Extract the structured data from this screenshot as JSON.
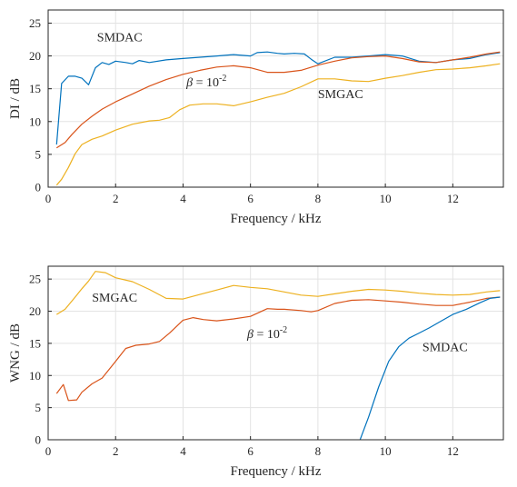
{
  "chart_data": [
    {
      "type": "line",
      "xlabel": "Frequency / kHz",
      "ylabel": "DI / dB",
      "xlim": [
        0,
        13.5
      ],
      "ylim": [
        0,
        27
      ],
      "xticks": [
        0,
        2,
        4,
        6,
        8,
        10,
        12
      ],
      "yticks": [
        0,
        5,
        10,
        15,
        20,
        25
      ],
      "grid": true,
      "series": [
        {
          "name": "SMDAC",
          "color": "#0072bd",
          "x": [
            0.25,
            0.4,
            0.6,
            0.8,
            1.0,
            1.2,
            1.4,
            1.6,
            1.8,
            2.0,
            2.3,
            2.5,
            2.7,
            3.0,
            3.5,
            4.0,
            4.5,
            5.0,
            5.5,
            6.0,
            6.2,
            6.5,
            6.8,
            7.0,
            7.3,
            7.6,
            7.8,
            8.0,
            8.5,
            9.0,
            9.5,
            10.0,
            10.5,
            11.0,
            11.5,
            12.0,
            12.5,
            13.0,
            13.4
          ],
          "y": [
            6.5,
            15.8,
            16.9,
            16.9,
            16.6,
            15.6,
            18.2,
            19.0,
            18.7,
            19.2,
            19.0,
            18.8,
            19.3,
            19.0,
            19.4,
            19.6,
            19.8,
            20.0,
            20.2,
            20.0,
            20.5,
            20.6,
            20.4,
            20.3,
            20.4,
            20.3,
            19.5,
            18.8,
            19.8,
            19.8,
            20.0,
            20.2,
            20.0,
            19.2,
            19.0,
            19.4,
            19.6,
            20.2,
            20.5
          ]
        },
        {
          "name": "β = 10⁻²",
          "color": "#d95319",
          "x": [
            0.25,
            0.5,
            0.7,
            1.0,
            1.3,
            1.6,
            2.0,
            2.5,
            3.0,
            3.5,
            4.0,
            4.5,
            5.0,
            5.5,
            6.0,
            6.5,
            7.0,
            7.5,
            8.0,
            8.5,
            9.0,
            9.5,
            10.0,
            10.5,
            11.0,
            11.5,
            12.0,
            12.5,
            13.0,
            13.4
          ],
          "y": [
            6.0,
            6.8,
            8.0,
            9.6,
            10.8,
            11.9,
            13.0,
            14.2,
            15.4,
            16.4,
            17.2,
            17.8,
            18.3,
            18.5,
            18.2,
            17.5,
            17.5,
            17.8,
            18.6,
            19.2,
            19.7,
            19.9,
            20.0,
            19.6,
            19.1,
            19.0,
            19.4,
            19.8,
            20.3,
            20.6
          ]
        },
        {
          "name": "SMGAC",
          "color": "#edb120",
          "x": [
            0.25,
            0.4,
            0.6,
            0.8,
            1.0,
            1.3,
            1.6,
            2.0,
            2.5,
            3.0,
            3.3,
            3.6,
            3.9,
            4.2,
            4.6,
            5.0,
            5.5,
            6.0,
            6.5,
            7.0,
            7.5,
            8.0,
            8.5,
            9.0,
            9.5,
            10.0,
            10.5,
            11.0,
            11.5,
            12.0,
            12.5,
            13.0,
            13.4
          ],
          "y": [
            0.3,
            1.2,
            3.0,
            5.1,
            6.5,
            7.3,
            7.8,
            8.7,
            9.6,
            10.1,
            10.2,
            10.6,
            11.8,
            12.5,
            12.7,
            12.7,
            12.4,
            13.0,
            13.7,
            14.3,
            15.3,
            16.5,
            16.5,
            16.2,
            16.1,
            16.6,
            17.0,
            17.5,
            17.9,
            18.0,
            18.2,
            18.5,
            18.8
          ]
        }
      ],
      "annotations": [
        {
          "text": "SMDAC",
          "x": 1.45,
          "y": 22.2
        },
        {
          "text": "β = 10",
          "sup": "-2",
          "x": 4.1,
          "y": 15.4
        },
        {
          "text": "SMGAC",
          "x": 8.0,
          "y": 13.6
        }
      ]
    },
    {
      "type": "line",
      "xlabel": "Frequency / kHz",
      "ylabel": "WNG / dB",
      "xlim": [
        0,
        13.5
      ],
      "ylim": [
        0,
        27
      ],
      "xticks": [
        0,
        2,
        4,
        6,
        8,
        10,
        12
      ],
      "yticks": [
        0,
        5,
        10,
        15,
        20,
        25
      ],
      "grid": true,
      "series": [
        {
          "name": "SMGAC",
          "color": "#edb120",
          "x": [
            0.25,
            0.5,
            0.8,
            1.0,
            1.2,
            1.4,
            1.7,
            2.0,
            2.5,
            3.0,
            3.5,
            4.0,
            4.5,
            5.0,
            5.5,
            6.0,
            6.5,
            7.0,
            7.5,
            8.0,
            8.5,
            9.0,
            9.5,
            10.0,
            10.5,
            11.0,
            11.5,
            12.0,
            12.5,
            13.0,
            13.4
          ],
          "y": [
            19.5,
            20.3,
            22.2,
            23.5,
            24.7,
            26.2,
            26.0,
            25.2,
            24.6,
            23.4,
            22.0,
            21.9,
            22.6,
            23.3,
            24.0,
            23.7,
            23.5,
            23.0,
            22.5,
            22.3,
            22.7,
            23.1,
            23.4,
            23.3,
            23.1,
            22.8,
            22.6,
            22.5,
            22.6,
            23.0,
            23.2
          ]
        },
        {
          "name": "β = 10⁻²",
          "color": "#d95319",
          "x": [
            0.25,
            0.45,
            0.6,
            0.85,
            1.0,
            1.3,
            1.6,
            2.0,
            2.3,
            2.6,
            3.0,
            3.3,
            3.6,
            4.0,
            4.3,
            4.6,
            5.0,
            5.5,
            6.0,
            6.5,
            6.8,
            7.0,
            7.5,
            7.8,
            8.0,
            8.5,
            9.0,
            9.5,
            10.0,
            10.5,
            11.0,
            11.5,
            12.0,
            12.5,
            13.0,
            13.4
          ],
          "y": [
            7.2,
            8.6,
            6.1,
            6.2,
            7.4,
            8.7,
            9.6,
            12.2,
            14.2,
            14.7,
            14.9,
            15.3,
            16.6,
            18.6,
            19.0,
            18.7,
            18.5,
            18.8,
            19.2,
            20.4,
            20.3,
            20.3,
            20.1,
            19.9,
            20.1,
            21.2,
            21.7,
            21.8,
            21.6,
            21.4,
            21.1,
            20.9,
            20.9,
            21.4,
            22.0,
            22.2
          ]
        },
        {
          "name": "SMDAC",
          "color": "#0072bd",
          "x": [
            9.25,
            9.5,
            9.8,
            10.1,
            10.4,
            10.7,
            11.0,
            11.3,
            11.6,
            12.0,
            12.4,
            12.8,
            13.1,
            13.4
          ],
          "y": [
            0.0,
            3.5,
            8.2,
            12.2,
            14.5,
            15.8,
            16.6,
            17.4,
            18.3,
            19.5,
            20.3,
            21.3,
            22.0,
            22.2
          ]
        }
      ],
      "annotations": [
        {
          "text": "SMGAC",
          "x": 1.3,
          "y": 21.5
        },
        {
          "text": "β = 10",
          "sup": "-2",
          "x": 5.9,
          "y": 15.8
        },
        {
          "text": "SMDAC",
          "x": 11.1,
          "y": 13.8
        }
      ]
    }
  ]
}
